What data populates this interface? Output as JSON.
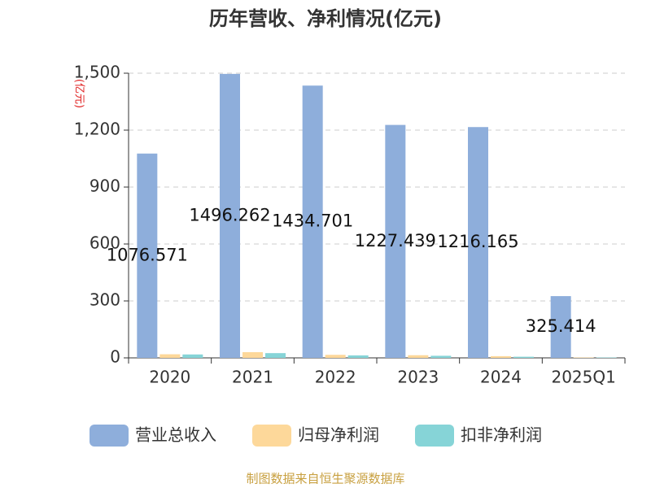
{
  "chart_data": {
    "type": "bar",
    "title": "历年营收、净利情况(亿元)",
    "y_label": "(亿元)",
    "categories": [
      "2020",
      "2021",
      "2022",
      "2023",
      "2024",
      "2025Q1"
    ],
    "series": [
      {
        "name": "营业总收入",
        "color": "#8eaedb",
        "values": [
          1076.571,
          1496.262,
          1434.701,
          1227.439,
          1216.165,
          325.414
        ],
        "show_labels": true
      },
      {
        "name": "归母净利润",
        "color": "#fdd89a",
        "values": [
          19,
          30,
          16,
          14,
          9,
          2
        ]
      },
      {
        "name": "扣非净利润",
        "color": "#86d4d7",
        "values": [
          18,
          25,
          13,
          11,
          6,
          2
        ]
      }
    ],
    "ylim": [
      0,
      1500
    ],
    "yticks": [
      0,
      300,
      600,
      900,
      {
        "value": 1200,
        "label": "1,200"
      },
      {
        "value": 1500,
        "label": "1,500"
      }
    ],
    "grid": true,
    "legend": "bottom",
    "source": "制图数据来自恒生聚源数据库"
  }
}
